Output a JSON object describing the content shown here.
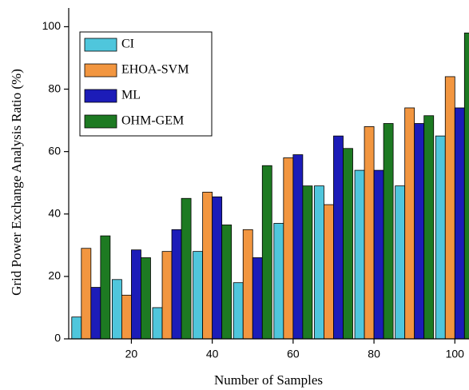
{
  "chart_data": {
    "type": "bar",
    "xlabel": "Number of Samples",
    "ylabel": "Grid Power Exchange Analysis Ratio (%)",
    "x": [
      10,
      20,
      30,
      40,
      50,
      60,
      70,
      80,
      90,
      100
    ],
    "series": [
      {
        "name": "CI",
        "color": "#4fc6dc",
        "values": [
          7,
          19,
          10,
          28,
          18,
          37,
          49,
          54,
          49,
          65
        ]
      },
      {
        "name": "EHOA-SVM",
        "color": "#f29640",
        "values": [
          29,
          14,
          28,
          47,
          35,
          58,
          43,
          68,
          74,
          84
        ]
      },
      {
        "name": "ML",
        "color": "#1c1cb8",
        "values": [
          16.5,
          28.5,
          35,
          45.5,
          26,
          59,
          65,
          54,
          69,
          74
        ]
      },
      {
        "name": "OHM-GEM",
        "color": "#1d7a22",
        "values": [
          33,
          26,
          45,
          36.5,
          55.5,
          49,
          61,
          69,
          71.5,
          98
        ]
      }
    ],
    "xlim": [
      4.5,
      103.5
    ],
    "xticks": [
      20,
      40,
      60,
      80,
      100
    ],
    "ylim": [
      0,
      106
    ],
    "yticks": [
      0,
      20,
      40,
      60,
      80,
      100
    ],
    "legend": "upper left"
  }
}
